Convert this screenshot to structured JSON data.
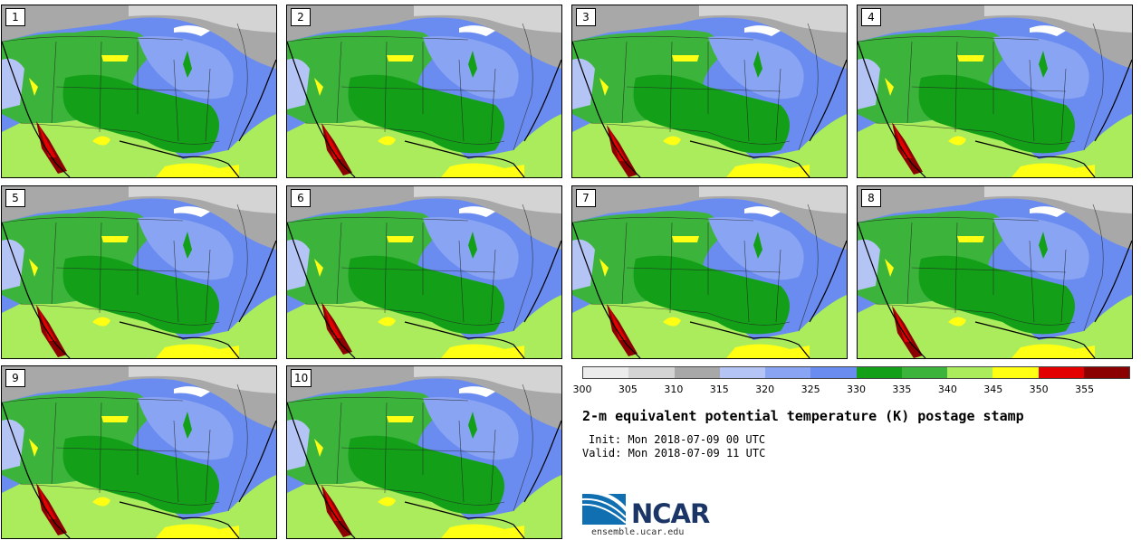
{
  "panels": [
    {
      "label": "1"
    },
    {
      "label": "2"
    },
    {
      "label": "3"
    },
    {
      "label": "4"
    },
    {
      "label": "5"
    },
    {
      "label": "6"
    },
    {
      "label": "7"
    },
    {
      "label": "8"
    },
    {
      "label": "9"
    },
    {
      "label": "10"
    }
  ],
  "legend": {
    "colors": [
      "#ececec",
      "#d4d4d4",
      "#a8a8a8",
      "#b4c4f4",
      "#8aa4f4",
      "#6a8cf0",
      "#13a018",
      "#3cb43c",
      "#aaec5c",
      "#ffff14",
      "#e20000",
      "#8b0000"
    ],
    "ticks": [
      "300",
      "305",
      "310",
      "315",
      "320",
      "325",
      "330",
      "335",
      "340",
      "345",
      "350",
      "355"
    ]
  },
  "title": "2-m equivalent potential temperature (K) postage stamp",
  "init": "Init: Mon 2018-07-09 00 UTC",
  "valid": "Valid: Mon 2018-07-09 11 UTC",
  "logo": {
    "text": "NCAR",
    "site": "ensemble.ucar.edu"
  }
}
